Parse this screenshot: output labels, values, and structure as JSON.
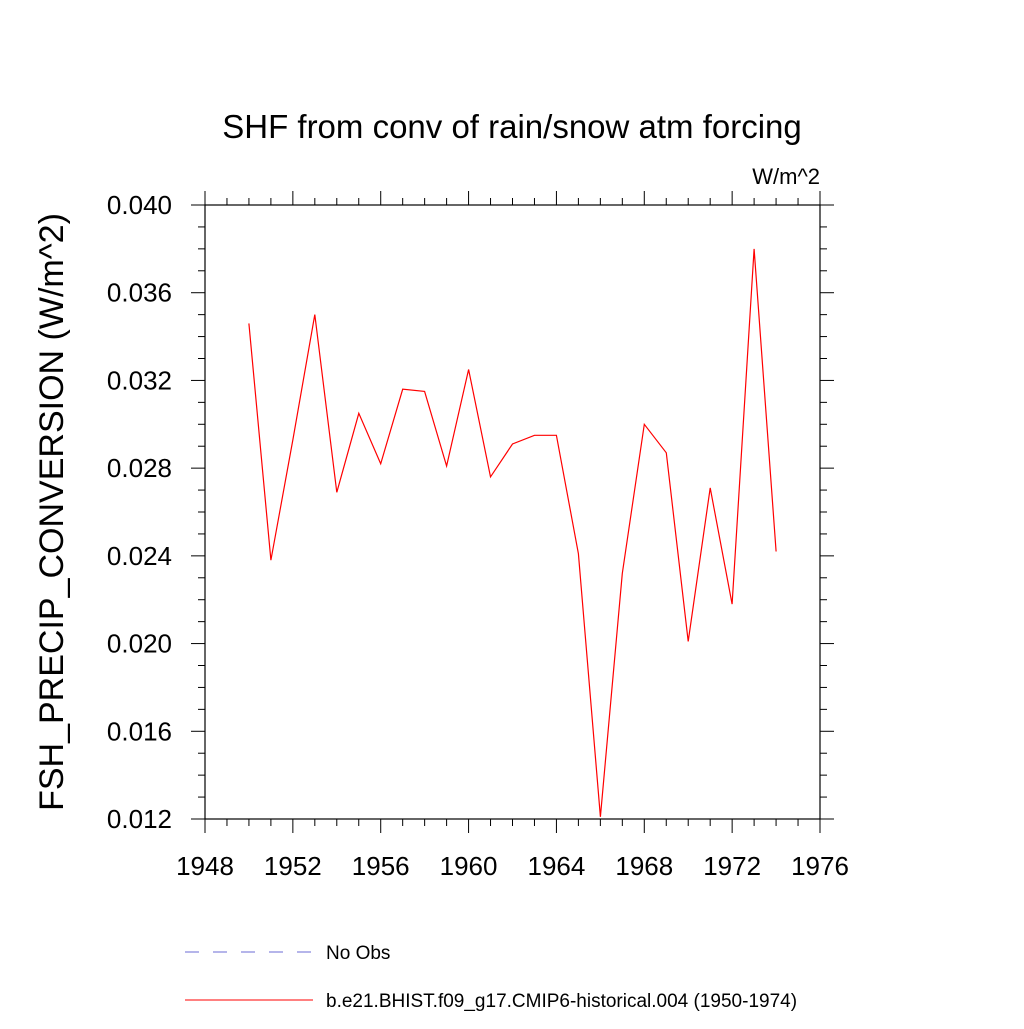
{
  "chart_data": {
    "type": "line",
    "title": "SHF from conv of rain/snow atm forcing",
    "units": "W/m^2",
    "ylabel": "FSH_PRECIP_CONVERSION  (W/m^2)",
    "xlabel": "",
    "xlim": [
      1948,
      1976
    ],
    "ylim": [
      0.012,
      0.04
    ],
    "x_ticks": [
      "1948",
      "1952",
      "1956",
      "1960",
      "1964",
      "1968",
      "1972",
      "1976"
    ],
    "y_ticks": [
      "0.012",
      "0.016",
      "0.020",
      "0.024",
      "0.028",
      "0.032",
      "0.036",
      "0.040"
    ],
    "grid": false,
    "legend_position": "bottom",
    "series": [
      {
        "name": "No Obs",
        "color": "#6b6bd6",
        "style": "dashed",
        "x": [],
        "values": []
      },
      {
        "name": "b.e21.BHIST.f09_g17.CMIP6-historical.004 (1950-1974)",
        "color": "#ff0000",
        "style": "solid",
        "x": [
          1950,
          1951,
          1952,
          1953,
          1954,
          1955,
          1956,
          1957,
          1958,
          1959,
          1960,
          1961,
          1962,
          1963,
          1964,
          1965,
          1966,
          1967,
          1968,
          1969,
          1970,
          1971,
          1972,
          1973,
          1974
        ],
        "values": [
          0.0346,
          0.0238,
          0.0293,
          0.035,
          0.0269,
          0.0305,
          0.0282,
          0.0316,
          0.0315,
          0.0281,
          0.0325,
          0.0276,
          0.0291,
          0.0295,
          0.0295,
          0.0241,
          0.0121,
          0.0232,
          0.03,
          0.0287,
          0.0201,
          0.0271,
          0.0218,
          0.038,
          0.0242
        ]
      }
    ]
  }
}
